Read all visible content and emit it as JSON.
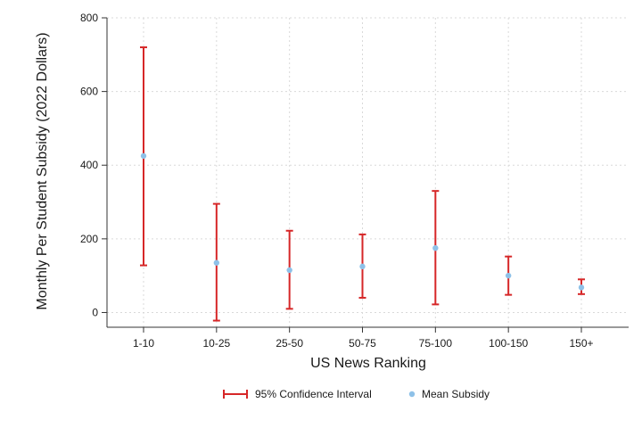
{
  "chart_data": {
    "type": "scatter",
    "categories": [
      "1-10",
      "10-25",
      "25-50",
      "50-75",
      "75-100",
      "100-150",
      "150+"
    ],
    "series": [
      {
        "name": "Mean Subsidy",
        "values": [
          425,
          135,
          115,
          125,
          175,
          100,
          68
        ]
      },
      {
        "name": "95% Confidence Interval",
        "lower": [
          128,
          -22,
          10,
          40,
          22,
          48,
          50
        ],
        "upper": [
          720,
          295,
          222,
          212,
          330,
          152,
          90
        ]
      }
    ],
    "xlabel": "US News Ranking",
    "ylabel": "Monthly Per Student Subsidy (2022 Dollars)",
    "ylim": [
      -40,
      800
    ],
    "yticks": [
      0,
      200,
      400,
      600,
      800
    ],
    "grid": true,
    "legend": "bottom-center",
    "colors": {
      "ci": "#d62728",
      "mean": "#8ec1e8",
      "grid": "#d9d9d9",
      "axis": "#333333"
    }
  }
}
